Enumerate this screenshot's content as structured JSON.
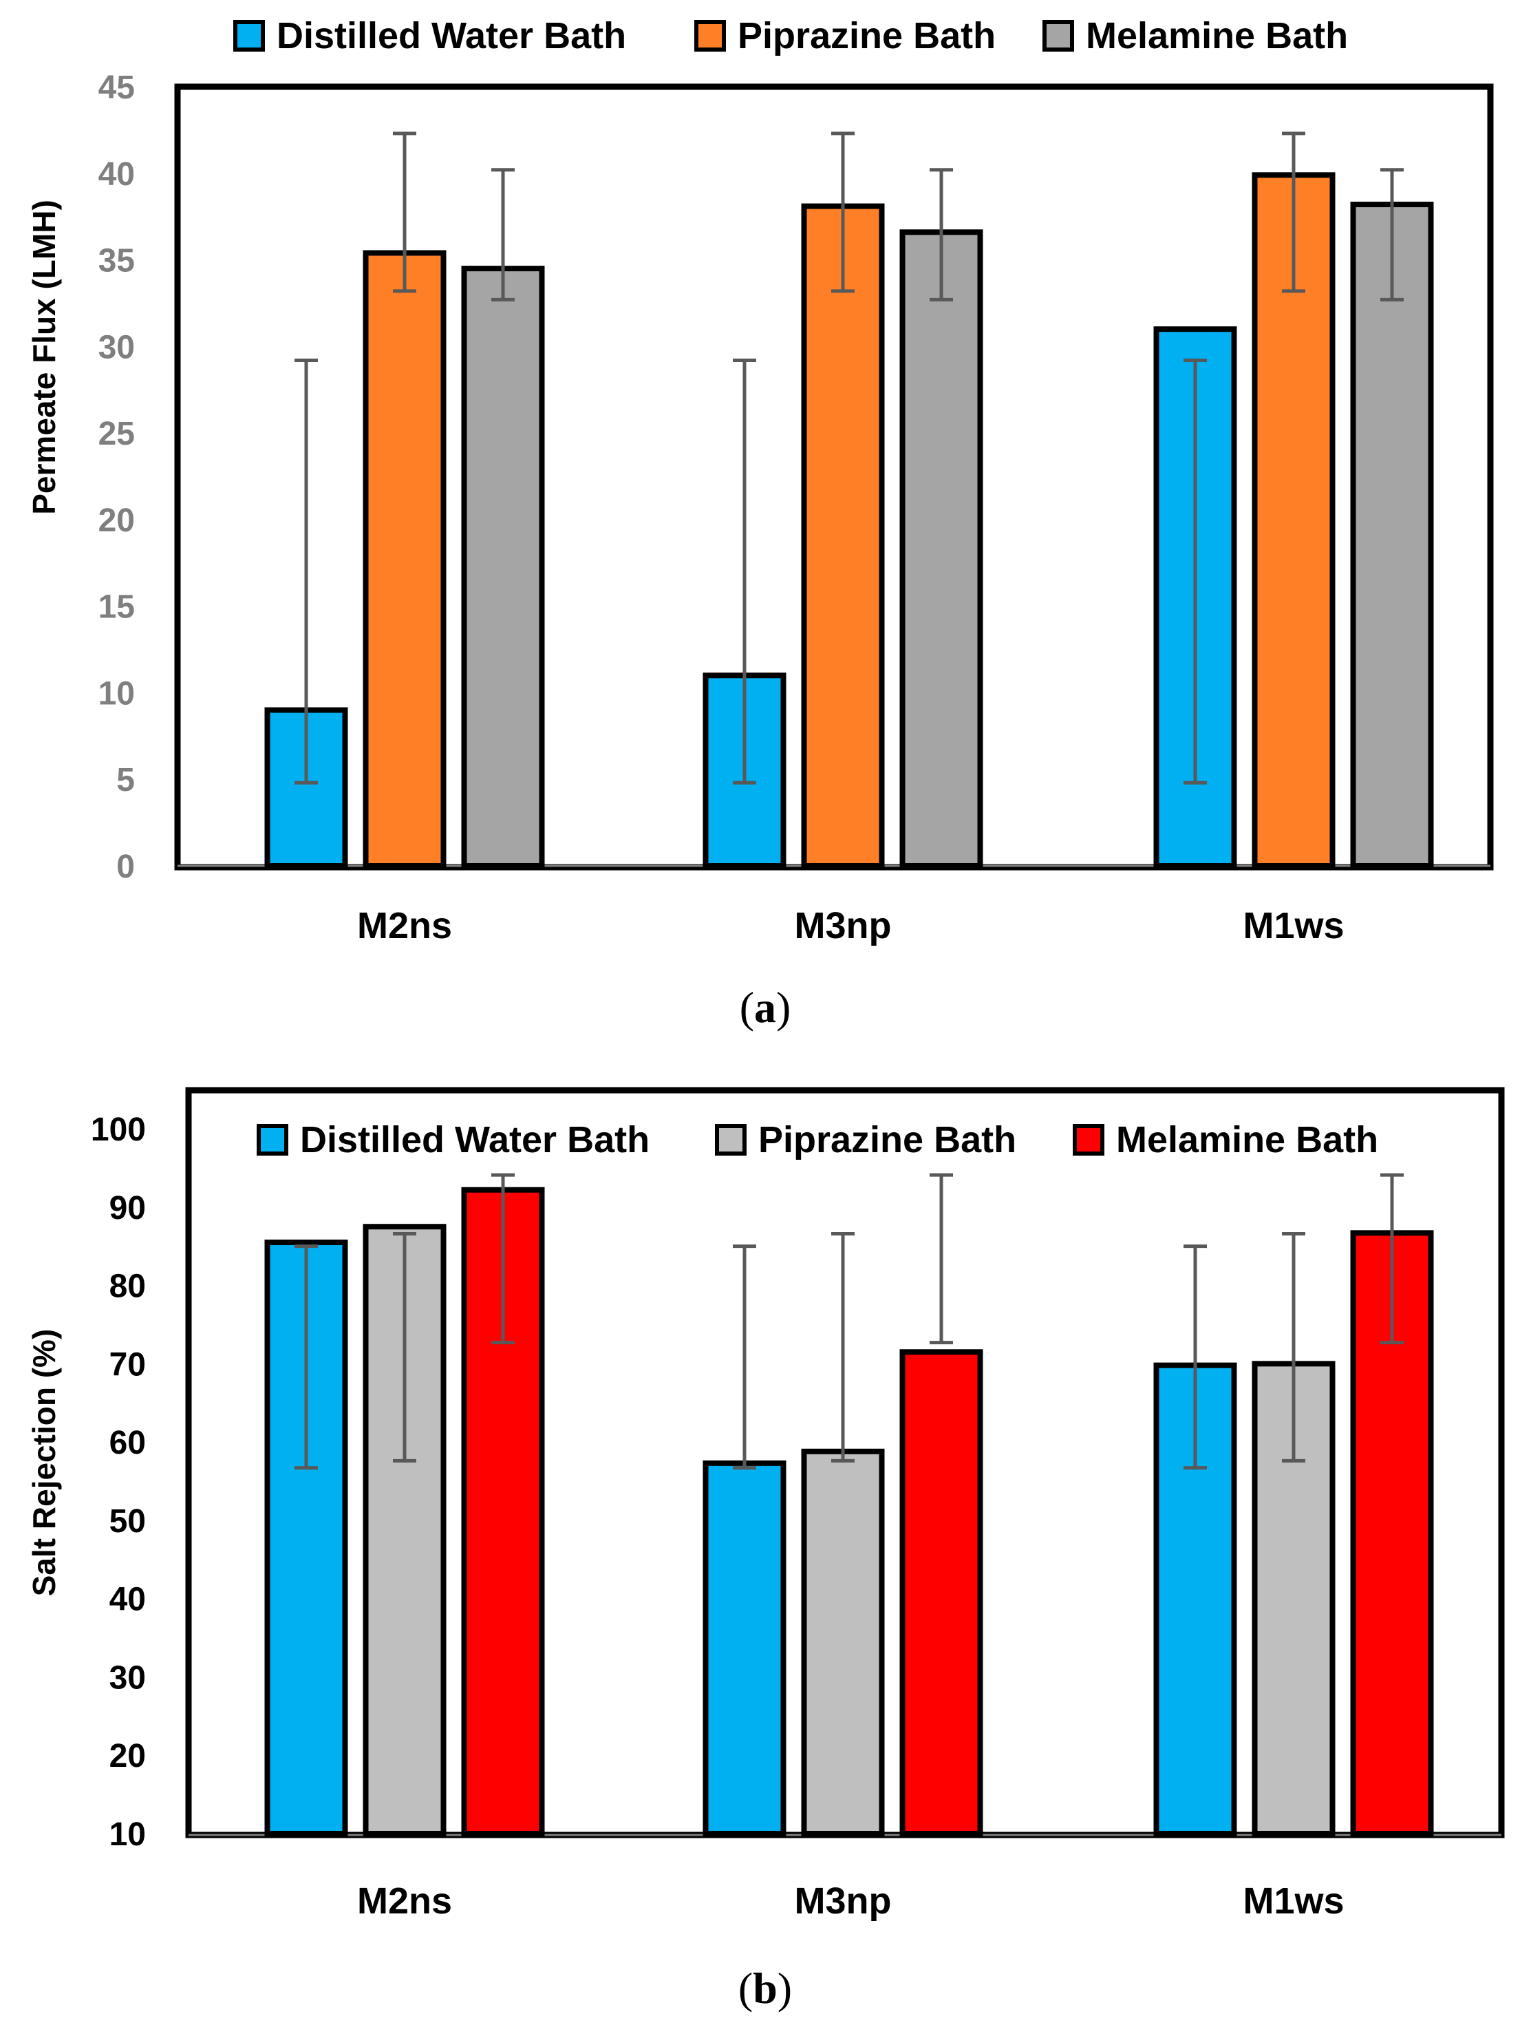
{
  "chart_data": [
    {
      "type": "bar",
      "panel_label": "a",
      "ylabel": "Permeate Flux (LMH)",
      "xlabel": "",
      "ylim": [
        0,
        45
      ],
      "yticks": [
        0,
        5,
        10,
        15,
        20,
        25,
        30,
        35,
        40,
        45
      ],
      "grid": false,
      "legend": "top",
      "categories": [
        "M2ns",
        "M3np",
        "M1ws"
      ],
      "series": [
        {
          "name": "Distilled Water Bath",
          "color": "#00b0f0",
          "values": [
            9,
            11,
            31
          ],
          "err_low": [
            4.8,
            4.8,
            4.8
          ],
          "err_high": [
            29.2,
            29.2,
            29.2
          ]
        },
        {
          "name": "Piprazine Bath",
          "color": "#ff7f27",
          "values": [
            35.4,
            38.1,
            39.9
          ],
          "err_low": [
            33.2,
            33.2,
            33.2
          ],
          "err_high": [
            42.3,
            42.3,
            42.3
          ]
        },
        {
          "name": "Melamine Bath",
          "color": "#a5a5a5",
          "values": [
            34.5,
            36.6,
            38.2
          ],
          "err_low": [
            32.7,
            32.7,
            32.7
          ],
          "err_high": [
            40.2,
            40.2,
            40.2
          ]
        }
      ]
    },
    {
      "type": "bar",
      "panel_label": "b",
      "ylabel": "Salt Rejection (%)",
      "xlabel": "",
      "ylim": [
        10,
        100
      ],
      "yticks": [
        10,
        20,
        30,
        40,
        50,
        60,
        70,
        80,
        90,
        100
      ],
      "grid": false,
      "legend": "top",
      "categories": [
        "M2ns",
        "M3np",
        "M1ws"
      ],
      "series": [
        {
          "name": "Distilled Water Bath",
          "color": "#00b0f0",
          "values": [
            85.5,
            57.3,
            69.8
          ],
          "err_low": [
            56.7,
            56.7,
            56.7
          ],
          "err_high": [
            85,
            85,
            85
          ]
        },
        {
          "name": "Piprazine Bath",
          "color": "#bfbfbf",
          "values": [
            87.5,
            58.8,
            70
          ],
          "err_low": [
            57.6,
            57.6,
            57.6
          ],
          "err_high": [
            86.6,
            86.6,
            86.6
          ]
        },
        {
          "name": "Melamine Bath",
          "color": "#ff0000",
          "values": [
            92.2,
            71.5,
            86.7
          ],
          "err_low": [
            72.7,
            72.7,
            72.7
          ],
          "err_high": [
            94.1,
            94.1,
            94.1
          ]
        }
      ]
    }
  ]
}
